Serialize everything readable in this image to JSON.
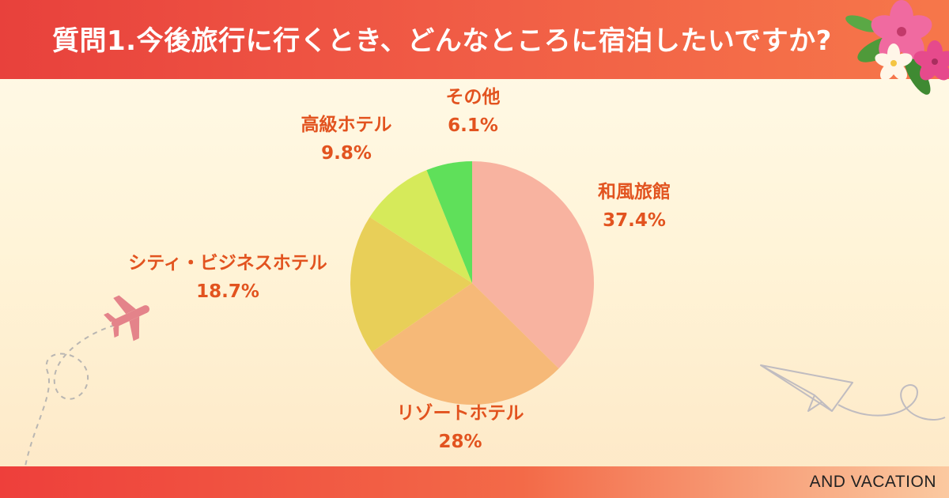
{
  "header": {
    "title": "質問1.今後旅行に行くとき、どんなところに宿泊したいですか?"
  },
  "footer": {
    "brand": "AND VACATION"
  },
  "colors": {
    "label_text": "#e2531f",
    "header_bg": "#ee4a40"
  },
  "decorations": [
    "flower-icon",
    "airplane-icon",
    "paper-plane-icon"
  ],
  "chart_data": {
    "type": "pie",
    "title": "",
    "slices": [
      {
        "label": "和風旅館",
        "value": 37.4,
        "display": "37.4%",
        "color": "#f8b3a0"
      },
      {
        "label": "リゾートホテル",
        "value": 28,
        "display": "28%",
        "color": "#f6b978"
      },
      {
        "label": "シティ・ビジネスホテル",
        "value": 18.7,
        "display": "18.7%",
        "color": "#e8cf58"
      },
      {
        "label": "高級ホテル",
        "value": 9.8,
        "display": "9.8%",
        "color": "#d6ea5a"
      },
      {
        "label": "その他",
        "value": 6.1,
        "display": "6.1%",
        "color": "#5fe05a"
      }
    ],
    "start": "12 o'clock",
    "direction": "clockwise",
    "legend": "none"
  }
}
